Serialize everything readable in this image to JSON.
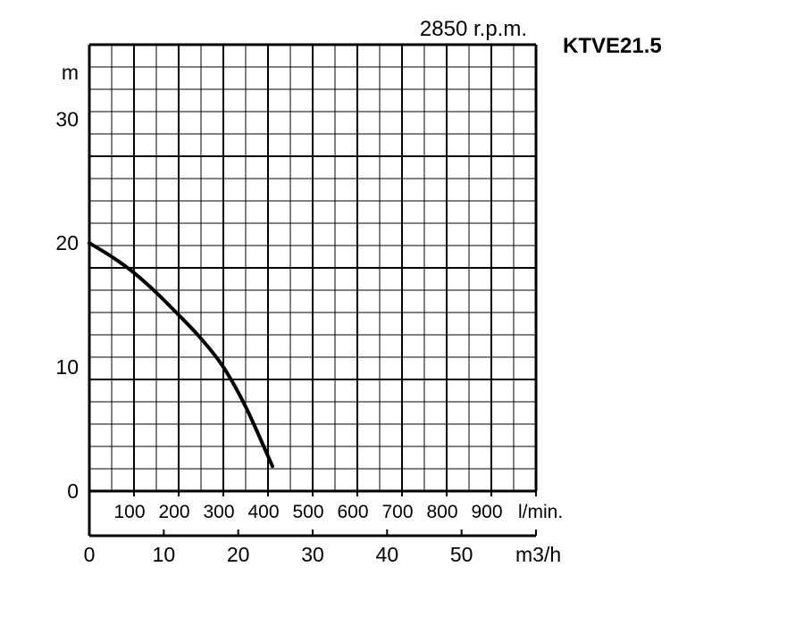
{
  "chart_data": {
    "type": "line",
    "title": "2850 r.p.m.",
    "model": "KTVE21.5",
    "ylabel": "m",
    "ylim": [
      0,
      36
    ],
    "y_ticks": [
      "0",
      "10",
      "20",
      "30"
    ],
    "x_axes": [
      {
        "unit": "l/min.",
        "ticks": [
          "100",
          "200",
          "300",
          "400",
          "500",
          "600",
          "700",
          "800",
          "900"
        ]
      },
      {
        "unit": "m3/h",
        "xlim": [
          0,
          60
        ],
        "ticks": [
          "0",
          "10",
          "20",
          "30",
          "40",
          "50"
        ]
      }
    ],
    "grid": true,
    "series": [
      {
        "x_unit": "m3/h",
        "points": [
          [
            0,
            20
          ],
          [
            3,
            18.9
          ],
          [
            6,
            17.6
          ],
          [
            9,
            16
          ],
          [
            12,
            14.2
          ],
          [
            15,
            12.3
          ],
          [
            18,
            10
          ],
          [
            21,
            6.8
          ],
          [
            24.6,
            2
          ]
        ]
      }
    ]
  },
  "colors": {
    "line": "#000000",
    "grid": "#000000",
    "background": "#ffffff"
  }
}
